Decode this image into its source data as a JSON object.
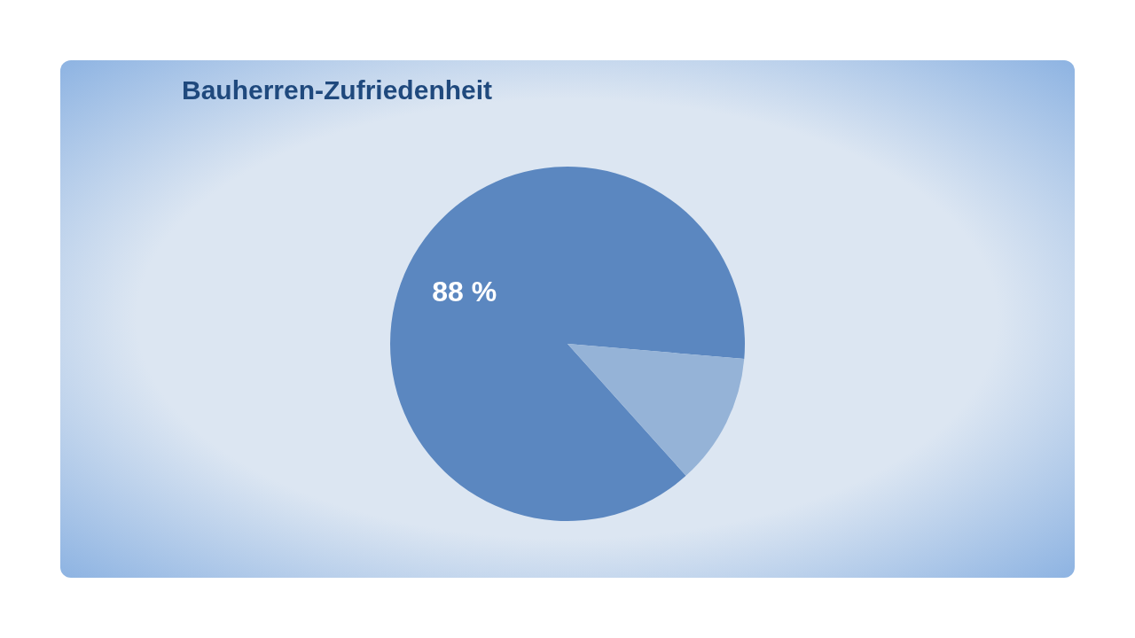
{
  "chart_data": {
    "type": "pie",
    "title": "Bauherren-Zufriedenheit",
    "categories": [
      null,
      null
    ],
    "values": [
      88,
      12
    ],
    "colors": [
      "#5b87c0",
      "#95b3d7"
    ],
    "value_labels": [
      "88 %",
      null
    ]
  }
}
